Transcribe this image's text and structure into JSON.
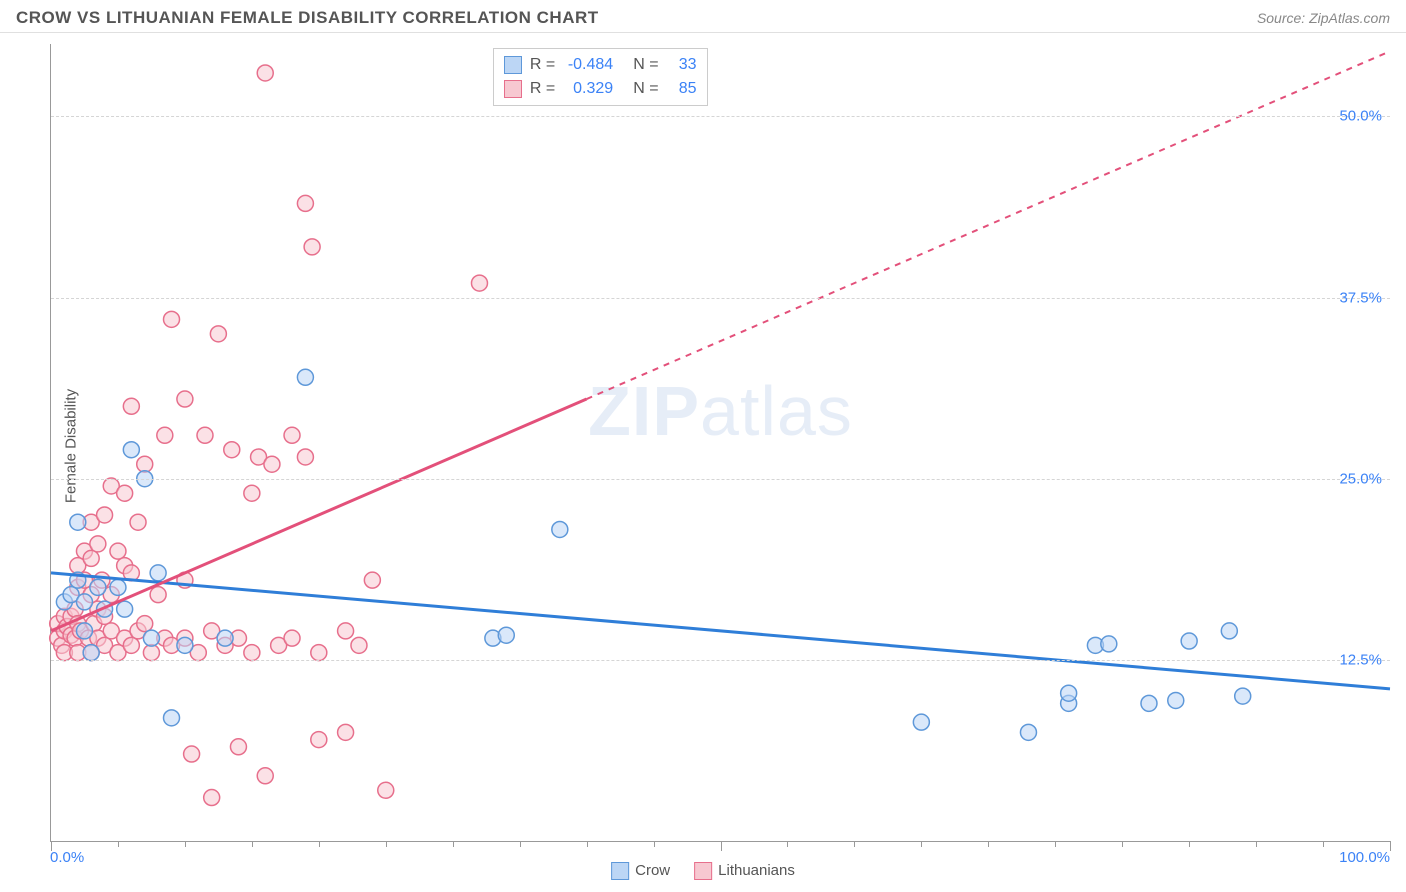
{
  "header": {
    "title": "CROW VS LITHUANIAN FEMALE DISABILITY CORRELATION CHART",
    "source": "Source: ZipAtlas.com"
  },
  "watermark": {
    "zip": "ZIP",
    "atlas": "atlas"
  },
  "chart": {
    "type": "scatter",
    "xlim": [
      0,
      100
    ],
    "ylim": [
      0,
      55
    ],
    "x_minor_tick_step": 5,
    "x_major_ticks": [
      0,
      50,
      100
    ],
    "x_minor_ticks": [
      5,
      10,
      15,
      20,
      25,
      30,
      35,
      40,
      45,
      55,
      60,
      65,
      70,
      75,
      80,
      85,
      90,
      95
    ],
    "y_ticks": [
      12.5,
      25.0,
      37.5,
      50.0
    ],
    "xlabel_min": "0.0%",
    "xlabel_max": "100.0%",
    "ylabel": "Female Disability",
    "background_color": "#ffffff",
    "grid_color": "#d5d5d5",
    "axis_color": "#999999",
    "marker_radius": 8,
    "marker_stroke_width": 1.5,
    "label_fontsize": 15,
    "label_color": "#3b82f6",
    "series": {
      "crow": {
        "label": "Crow",
        "fill": "#bcd6f5",
        "stroke": "#5e98d9",
        "trend_color": "#2f7ed8",
        "R": "-0.484",
        "N": "33",
        "trend": {
          "x1": 0,
          "y1": 18.5,
          "x2": 100,
          "y2": 10.5
        },
        "points": [
          [
            1,
            16.5
          ],
          [
            1.5,
            17
          ],
          [
            2,
            22
          ],
          [
            2,
            18
          ],
          [
            2.5,
            16.5
          ],
          [
            2.5,
            14.5
          ],
          [
            3,
            13
          ],
          [
            3.5,
            17.5
          ],
          [
            4,
            16
          ],
          [
            5,
            17.5
          ],
          [
            5.5,
            16
          ],
          [
            6,
            27
          ],
          [
            7,
            25
          ],
          [
            7.5,
            14
          ],
          [
            8,
            18.5
          ],
          [
            9,
            8.5
          ],
          [
            10,
            13.5
          ],
          [
            13,
            14
          ],
          [
            19,
            32
          ],
          [
            33,
            14
          ],
          [
            34,
            14.2
          ],
          [
            38,
            21.5
          ],
          [
            65,
            8.2
          ],
          [
            73,
            7.5
          ],
          [
            76,
            9.5
          ],
          [
            78,
            13.5
          ],
          [
            79,
            13.6
          ],
          [
            82,
            9.5
          ],
          [
            84,
            9.7
          ],
          [
            85,
            13.8
          ],
          [
            88,
            14.5
          ],
          [
            89,
            10
          ],
          [
            76,
            10.2
          ]
        ]
      },
      "lithuanians": {
        "label": "Lithuanians",
        "fill": "#f7c8d1",
        "stroke": "#e76f8c",
        "trend_color": "#e3507a",
        "R": "0.329",
        "N": "85",
        "trend_solid": {
          "x1": 0,
          "y1": 14.5,
          "x2": 40,
          "y2": 30.5
        },
        "trend_dash": {
          "x1": 40,
          "y1": 30.5,
          "x2": 100,
          "y2": 54.5
        },
        "points": [
          [
            0.5,
            14
          ],
          [
            0.5,
            15
          ],
          [
            0.8,
            13.5
          ],
          [
            1,
            14.5
          ],
          [
            1,
            15.5
          ],
          [
            1,
            13
          ],
          [
            1.2,
            14.8
          ],
          [
            1.5,
            14.2
          ],
          [
            1.5,
            15.5
          ],
          [
            1.8,
            14
          ],
          [
            1.8,
            16
          ],
          [
            2,
            13
          ],
          [
            2,
            15
          ],
          [
            2,
            17.5
          ],
          [
            2,
            19
          ],
          [
            2.2,
            14.5
          ],
          [
            2.5,
            18
          ],
          [
            2.5,
            20
          ],
          [
            2.8,
            14
          ],
          [
            3,
            13
          ],
          [
            3,
            17
          ],
          [
            3,
            19.5
          ],
          [
            3,
            22
          ],
          [
            3.2,
            15
          ],
          [
            3.5,
            16
          ],
          [
            3.5,
            20.5
          ],
          [
            3.5,
            14
          ],
          [
            3.8,
            18
          ],
          [
            4,
            13.5
          ],
          [
            4,
            15.5
          ],
          [
            4,
            22.5
          ],
          [
            4.5,
            14.5
          ],
          [
            4.5,
            17
          ],
          [
            4.5,
            24.5
          ],
          [
            5,
            13
          ],
          [
            5,
            20
          ],
          [
            5.5,
            14
          ],
          [
            5.5,
            19
          ],
          [
            5.5,
            24
          ],
          [
            6,
            13.5
          ],
          [
            6,
            18.5
          ],
          [
            6,
            30
          ],
          [
            6.5,
            14.5
          ],
          [
            6.5,
            22
          ],
          [
            7,
            15
          ],
          [
            7,
            26
          ],
          [
            7.5,
            13
          ],
          [
            8,
            17
          ],
          [
            8.5,
            14
          ],
          [
            8.5,
            28
          ],
          [
            9,
            13.5
          ],
          [
            9,
            36
          ],
          [
            10,
            14
          ],
          [
            10,
            18
          ],
          [
            10,
            30.5
          ],
          [
            10.5,
            6
          ],
          [
            11,
            13
          ],
          [
            11.5,
            28
          ],
          [
            12,
            3
          ],
          [
            12,
            14.5
          ],
          [
            12.5,
            35
          ],
          [
            13,
            13.5
          ],
          [
            13.5,
            27
          ],
          [
            14,
            14
          ],
          [
            15,
            13
          ],
          [
            15,
            24
          ],
          [
            15.5,
            26.5
          ],
          [
            16,
            4.5
          ],
          [
            16,
            53
          ],
          [
            16.5,
            26
          ],
          [
            17,
            13.5
          ],
          [
            18,
            14
          ],
          [
            18,
            28
          ],
          [
            19,
            26.5
          ],
          [
            19,
            44
          ],
          [
            19.5,
            41
          ],
          [
            20,
            7
          ],
          [
            20,
            13
          ],
          [
            22,
            7.5
          ],
          [
            22,
            14.5
          ],
          [
            23,
            13.5
          ],
          [
            24,
            18
          ],
          [
            25,
            3.5
          ],
          [
            32,
            38.5
          ],
          [
            14,
            6.5
          ]
        ]
      }
    }
  },
  "legend_top": {
    "rows": [
      {
        "swatch_fill": "#bcd6f5",
        "swatch_stroke": "#5e98d9",
        "R_label": "R =",
        "R": "-0.484",
        "N_label": "N =",
        "N": "33"
      },
      {
        "swatch_fill": "#f7c8d1",
        "swatch_stroke": "#e76f8c",
        "R_label": "R =",
        "R": "0.329",
        "N_label": "N =",
        "N": "85"
      }
    ]
  },
  "legend_bottom": {
    "items": [
      {
        "fill": "#bcd6f5",
        "stroke": "#5e98d9",
        "label": "Crow"
      },
      {
        "fill": "#f7c8d1",
        "stroke": "#e76f8c",
        "label": "Lithuanians"
      }
    ]
  }
}
